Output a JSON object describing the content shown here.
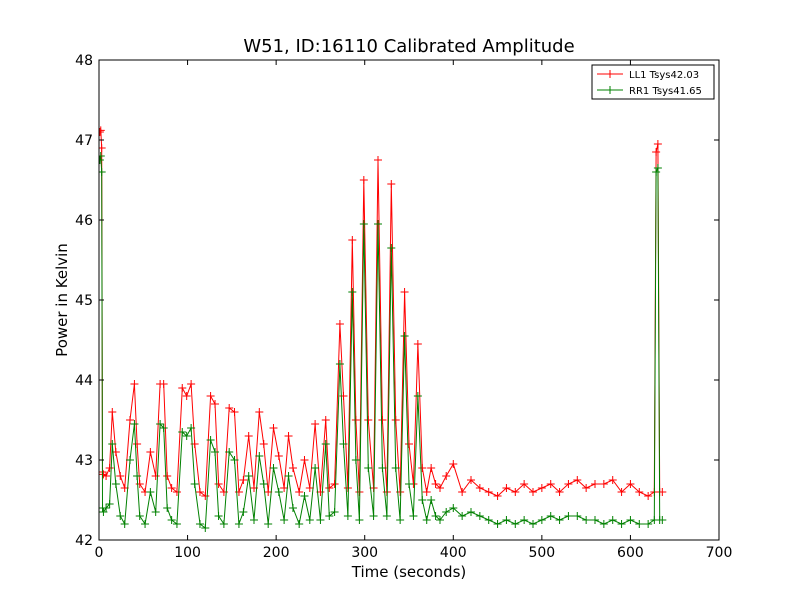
{
  "chart_data": {
    "type": "line",
    "title": "W51, ID:16110 Calibrated Amplitude",
    "xlabel": "Time (seconds)",
    "ylabel": "Power in Kelvin",
    "xlim": [
      0,
      700
    ],
    "ylim": [
      42,
      48
    ],
    "xticks": [
      0,
      100,
      200,
      300,
      400,
      500,
      600,
      700
    ],
    "yticks": [
      42,
      43,
      44,
      45,
      46,
      47,
      48
    ],
    "grid": false,
    "legend_position": "top-right",
    "series": [
      {
        "name": "LL1 Tsys42.03",
        "color": "#ff0000",
        "marker": "plus",
        "x": [
          1,
          2,
          3,
          4,
          5,
          8,
          12,
          15,
          19,
          24,
          29,
          35,
          40,
          43,
          46,
          52,
          58,
          64,
          69,
          73,
          77,
          82,
          88,
          94,
          99,
          104,
          108,
          114,
          120,
          126,
          131,
          135,
          141,
          147,
          153,
          158,
          163,
          169,
          175,
          181,
          186,
          191,
          197,
          203,
          209,
          214,
          219,
          226,
          232,
          238,
          244,
          250,
          256,
          260,
          266,
          272,
          276,
          281,
          286,
          290,
          294,
          299,
          304,
          310,
          315,
          320,
          325,
          330,
          335,
          340,
          345,
          350,
          355,
          360,
          365,
          370,
          375,
          380,
          385,
          392,
          400,
          410,
          420,
          430,
          440,
          450,
          460,
          470,
          480,
          490,
          500,
          510,
          520,
          530,
          540,
          550,
          560,
          570,
          580,
          590,
          600,
          610,
          620,
          627,
          629,
          631,
          633,
          636
        ],
        "y": [
          47.1,
          47.12,
          46.9,
          42.85,
          42.82,
          42.8,
          42.9,
          43.6,
          43.1,
          42.8,
          42.65,
          43.5,
          43.95,
          43.2,
          42.7,
          42.6,
          43.1,
          42.8,
          43.95,
          43.95,
          42.8,
          42.65,
          42.6,
          43.9,
          43.8,
          43.95,
          43.2,
          42.6,
          42.55,
          43.8,
          43.7,
          42.7,
          42.6,
          43.65,
          43.6,
          42.6,
          42.75,
          43.3,
          42.65,
          43.6,
          43.2,
          42.6,
          43.4,
          43.05,
          42.65,
          43.3,
          42.9,
          42.6,
          43.0,
          42.65,
          43.45,
          42.6,
          43.5,
          42.65,
          42.7,
          44.7,
          43.8,
          42.65,
          45.75,
          43.5,
          42.6,
          46.5,
          43.5,
          42.65,
          46.75,
          43.5,
          42.6,
          46.45,
          43.5,
          42.6,
          45.1,
          43.2,
          42.7,
          44.45,
          42.9,
          42.6,
          42.9,
          42.7,
          42.65,
          42.8,
          42.95,
          42.6,
          42.75,
          42.65,
          42.6,
          42.55,
          42.65,
          42.6,
          42.7,
          42.6,
          42.65,
          42.7,
          42.6,
          42.7,
          42.75,
          42.65,
          42.7,
          42.7,
          42.75,
          42.6,
          42.7,
          42.6,
          42.55,
          42.6,
          46.85,
          46.95,
          42.6,
          42.6
        ]
      },
      {
        "name": "RR1 Tsys41.65",
        "color": "#008000",
        "marker": "plus",
        "x": [
          1,
          2,
          3,
          4,
          5,
          8,
          12,
          15,
          19,
          24,
          29,
          35,
          40,
          43,
          46,
          52,
          58,
          64,
          69,
          73,
          77,
          82,
          88,
          94,
          99,
          104,
          108,
          114,
          120,
          126,
          131,
          135,
          141,
          147,
          153,
          158,
          163,
          169,
          175,
          181,
          186,
          191,
          197,
          203,
          209,
          214,
          219,
          226,
          232,
          238,
          244,
          250,
          256,
          260,
          266,
          272,
          276,
          281,
          286,
          290,
          294,
          299,
          304,
          310,
          315,
          320,
          325,
          330,
          335,
          340,
          345,
          350,
          355,
          360,
          365,
          370,
          375,
          380,
          385,
          392,
          400,
          410,
          420,
          430,
          440,
          450,
          460,
          470,
          480,
          490,
          500,
          510,
          520,
          530,
          540,
          550,
          560,
          570,
          580,
          590,
          600,
          610,
          620,
          627,
          629,
          631,
          633,
          636
        ],
        "y": [
          46.75,
          46.8,
          46.6,
          42.4,
          42.35,
          42.4,
          42.45,
          43.2,
          42.7,
          42.3,
          42.2,
          43.0,
          43.45,
          42.8,
          42.3,
          42.2,
          42.6,
          42.35,
          43.45,
          43.4,
          42.4,
          42.25,
          42.2,
          43.35,
          43.3,
          43.4,
          42.7,
          42.2,
          42.15,
          43.25,
          43.1,
          42.3,
          42.2,
          43.1,
          43.0,
          42.2,
          42.35,
          42.8,
          42.25,
          43.05,
          42.7,
          42.2,
          42.9,
          42.6,
          42.25,
          42.8,
          42.4,
          42.2,
          42.55,
          42.25,
          42.9,
          42.25,
          43.2,
          42.3,
          42.35,
          44.2,
          43.2,
          42.3,
          45.1,
          43.0,
          42.25,
          45.95,
          42.9,
          42.3,
          45.95,
          42.9,
          42.3,
          45.65,
          42.9,
          42.25,
          44.55,
          42.7,
          42.3,
          43.8,
          42.5,
          42.25,
          42.5,
          42.3,
          42.25,
          42.35,
          42.4,
          42.3,
          42.35,
          42.3,
          42.25,
          42.2,
          42.25,
          42.2,
          42.25,
          42.2,
          42.25,
          42.3,
          42.25,
          42.3,
          42.3,
          42.25,
          42.25,
          42.2,
          42.25,
          42.2,
          42.25,
          42.2,
          42.2,
          42.25,
          46.6,
          46.65,
          42.25,
          42.25
        ]
      }
    ]
  }
}
